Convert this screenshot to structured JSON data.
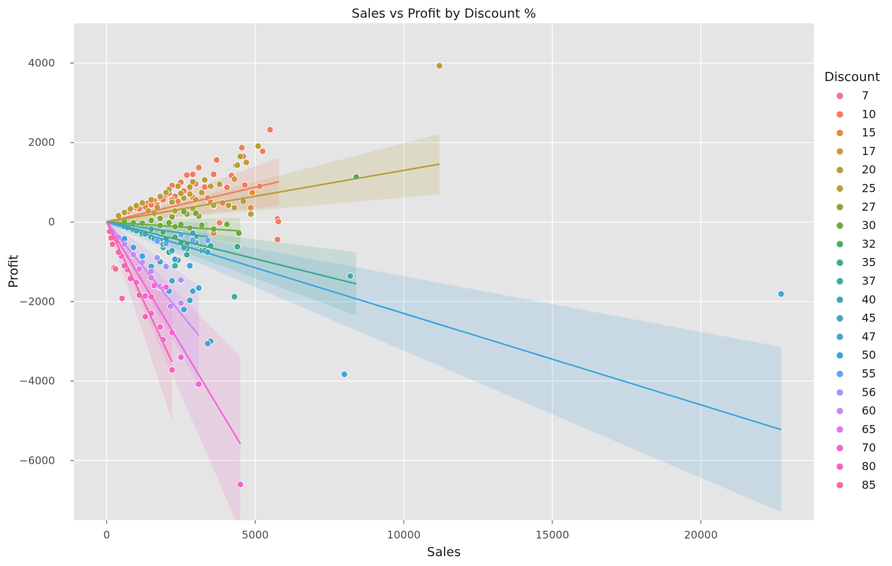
{
  "chart_data": {
    "type": "scatter",
    "title": "Sales vs Profit by Discount %",
    "xlabel": "Sales",
    "ylabel": "Profit",
    "xlim": [
      -1100,
      23800
    ],
    "ylim": [
      -7500,
      5000
    ],
    "xticks": [
      0,
      5000,
      10000,
      15000,
      20000
    ],
    "yticks": [
      -6000,
      -4000,
      -2000,
      0,
      2000,
      4000
    ],
    "xtick_labels": [
      "0",
      "5000",
      "10000",
      "15000",
      "20000"
    ],
    "ytick_labels": [
      "−6000",
      "−4000",
      "−2000",
      "0",
      "2000",
      "4000"
    ],
    "grid": true,
    "background": "#e5e5e5",
    "legend_title": "Discount",
    "legend_position": "right",
    "series": [
      {
        "name": "7",
        "color": "#f77189",
        "points": []
      },
      {
        "name": "10",
        "color": "#f57a5c",
        "slope": 0.175,
        "x_end": 5800,
        "points": [
          [
            5500,
            2320
          ],
          [
            5250,
            1780
          ],
          [
            4550,
            1870
          ],
          [
            4600,
            1650
          ],
          [
            3700,
            1560
          ],
          [
            3100,
            1370
          ],
          [
            2900,
            1200
          ],
          [
            2700,
            1180
          ],
          [
            3600,
            1200
          ],
          [
            4200,
            1170
          ],
          [
            4650,
            930
          ],
          [
            5150,
            900
          ],
          [
            5750,
            80
          ],
          [
            5780,
            10
          ],
          [
            5750,
            -440
          ],
          [
            3600,
            -280
          ],
          [
            3800,
            -20
          ],
          [
            3000,
            960
          ],
          [
            2500,
            1000
          ],
          [
            2200,
            920
          ],
          [
            2600,
            780
          ],
          [
            2300,
            650
          ],
          [
            2000,
            680
          ],
          [
            1800,
            600
          ],
          [
            1600,
            540
          ],
          [
            1400,
            480
          ],
          [
            1200,
            420
          ],
          [
            1000,
            350
          ],
          [
            800,
            290
          ],
          [
            600,
            220
          ],
          [
            400,
            150
          ],
          [
            3300,
            880
          ],
          [
            2800,
            850
          ],
          [
            2100,
            720
          ],
          [
            1900,
            560
          ],
          [
            1500,
            430
          ],
          [
            1100,
            330
          ],
          [
            700,
            260
          ],
          [
            3400,
            600
          ],
          [
            3900,
            480
          ],
          [
            4050,
            870
          ]
        ]
      },
      {
        "name": "15",
        "color": "#e58b3c",
        "points": [
          [
            4900,
            740
          ],
          [
            4850,
            360
          ],
          [
            3500,
            500
          ],
          [
            2900,
            620
          ],
          [
            2400,
            520
          ],
          [
            1700,
            430
          ],
          [
            1300,
            380
          ]
        ]
      },
      {
        "name": "17",
        "color": "#c99b3a",
        "points": [
          [
            4400,
            1450
          ],
          [
            4700,
            1500
          ],
          [
            4300,
            1080
          ],
          [
            3500,
            900
          ],
          [
            2800,
            700
          ],
          [
            2200,
            560
          ]
        ]
      },
      {
        "name": "20",
        "color": "#b79e38",
        "slope": 0.13,
        "x_end": 11200,
        "points": [
          [
            11200,
            3930
          ],
          [
            5100,
            1910
          ],
          [
            4500,
            1650
          ],
          [
            4350,
            1420
          ],
          [
            3800,
            950
          ],
          [
            3300,
            1060
          ],
          [
            2900,
            1010
          ],
          [
            2800,
            880
          ],
          [
            2400,
            900
          ],
          [
            2100,
            820
          ],
          [
            2000,
            740
          ],
          [
            1800,
            640
          ],
          [
            1500,
            560
          ],
          [
            1200,
            480
          ],
          [
            1000,
            410
          ],
          [
            800,
            330
          ],
          [
            600,
            240
          ],
          [
            400,
            160
          ],
          [
            4600,
            520
          ],
          [
            4850,
            200
          ],
          [
            4300,
            360
          ],
          [
            4100,
            420
          ],
          [
            3600,
            400
          ],
          [
            3000,
            560
          ],
          [
            2600,
            600
          ],
          [
            2200,
            500
          ],
          [
            1700,
            370
          ],
          [
            1400,
            280
          ],
          [
            3200,
            740
          ],
          [
            2500,
            720
          ]
        ]
      },
      {
        "name": "25",
        "color": "#b1a537",
        "points": [
          [
            4400,
            1430
          ],
          [
            3600,
            420
          ],
          [
            2900,
            340
          ],
          [
            2300,
            280
          ],
          [
            1600,
            220
          ]
        ]
      },
      {
        "name": "27",
        "color": "#8ba539",
        "points": [
          [
            3100,
            150
          ],
          [
            2700,
            200
          ],
          [
            2200,
            130
          ],
          [
            1800,
            90
          ]
        ]
      },
      {
        "name": "30",
        "color": "#70ab3c",
        "slope": -0.05,
        "x_end": 4500,
        "points": [
          [
            4450,
            -280
          ],
          [
            4050,
            -60
          ],
          [
            3600,
            -180
          ],
          [
            3200,
            -80
          ],
          [
            2800,
            -150
          ],
          [
            2500,
            -60
          ],
          [
            2100,
            -20
          ],
          [
            1800,
            -90
          ],
          [
            1500,
            40
          ],
          [
            1200,
            -30
          ],
          [
            900,
            -20
          ],
          [
            600,
            10
          ],
          [
            3000,
            220
          ],
          [
            2600,
            260
          ],
          [
            2300,
            -120
          ]
        ]
      },
      {
        "name": "32",
        "color": "#4fad5d",
        "points": [
          [
            2700,
            -560
          ],
          [
            2300,
            -380
          ],
          [
            1900,
            -250
          ],
          [
            1500,
            -180
          ]
        ]
      },
      {
        "name": "35",
        "color": "#3ea988",
        "slope": -0.185,
        "x_end": 8400,
        "points": [
          [
            8400,
            1130
          ],
          [
            4400,
            -620
          ],
          [
            3500,
            -600
          ],
          [
            3200,
            -720
          ],
          [
            2700,
            -820
          ],
          [
            2400,
            -960
          ],
          [
            2100,
            -760
          ],
          [
            1800,
            -500
          ],
          [
            1500,
            -380
          ],
          [
            1200,
            -300
          ],
          [
            900,
            -200
          ],
          [
            600,
            -120
          ],
          [
            3000,
            -360
          ],
          [
            2500,
            -520
          ],
          [
            2000,
            -420
          ]
        ]
      },
      {
        "name": "37",
        "color": "#42a9a2",
        "points": [
          [
            4300,
            -1880
          ],
          [
            3300,
            -720
          ],
          [
            2700,
            -680
          ],
          [
            2300,
            -1100
          ],
          [
            1900,
            -640
          ]
        ]
      },
      {
        "name": "40",
        "color": "#44a6b4",
        "slope": -0.11,
        "x_end": 3400,
        "points": [
          [
            8200,
            -1360
          ],
          [
            3400,
            -760
          ],
          [
            3000,
            -520
          ],
          [
            2600,
            -650
          ],
          [
            2200,
            -720
          ],
          [
            1900,
            -560
          ],
          [
            1600,
            -420
          ],
          [
            1300,
            -300
          ],
          [
            1000,
            -220
          ],
          [
            700,
            -140
          ],
          [
            2900,
            -280
          ]
        ]
      },
      {
        "name": "45",
        "color": "#45a5c2",
        "points": [
          [
            2800,
            -1970
          ],
          [
            2500,
            -1470
          ],
          [
            2200,
            -1480
          ],
          [
            1800,
            -1000
          ]
        ]
      },
      {
        "name": "47",
        "color": "#48a4d0",
        "points": [
          [
            3500,
            -3000
          ],
          [
            3400,
            -3060
          ],
          [
            2900,
            -1740
          ]
        ]
      },
      {
        "name": "50",
        "color": "#3ea3dd",
        "slope": -0.23,
        "x_end": 22700,
        "points": [
          [
            22700,
            -1810
          ],
          [
            8000,
            -3830
          ],
          [
            3100,
            -1660
          ],
          [
            2600,
            -2200
          ],
          [
            2100,
            -1740
          ],
          [
            1800,
            -1640
          ],
          [
            1500,
            -1120
          ],
          [
            1200,
            -860
          ],
          [
            900,
            -640
          ],
          [
            600,
            -420
          ],
          [
            2800,
            -1100
          ],
          [
            2300,
            -940
          ]
        ]
      },
      {
        "name": "55",
        "color": "#67a4f0",
        "points": [
          [
            3400,
            -460
          ],
          [
            2900,
            -460
          ],
          [
            2500,
            -320
          ],
          [
            2000,
            -540
          ],
          [
            1700,
            -480
          ]
        ]
      },
      {
        "name": "56",
        "color": "#9b9bf3",
        "points": [
          [
            2500,
            -1460
          ],
          [
            2000,
            -1120
          ],
          [
            1700,
            -900
          ]
        ]
      },
      {
        "name": "60",
        "color": "#c38af2",
        "slope": -0.92,
        "x_end": 3100,
        "points": [
          [
            3050,
            -4080
          ],
          [
            2150,
            -2120
          ],
          [
            1800,
            -1620
          ],
          [
            1500,
            -1240
          ],
          [
            1200,
            -1020
          ],
          [
            900,
            -820
          ],
          [
            600,
            -560
          ],
          [
            400,
            -380
          ],
          [
            2500,
            -2040
          ]
        ]
      },
      {
        "name": "65",
        "color": "#e276ed",
        "points": [
          [
            1900,
            -1670
          ],
          [
            1500,
            -1400
          ],
          [
            1100,
            -1180
          ]
        ]
      },
      {
        "name": "70",
        "color": "#f264d6",
        "slope": -1.24,
        "x_end": 4500,
        "points": [
          [
            4500,
            -6600
          ],
          [
            3100,
            -4080
          ],
          [
            2500,
            -3400
          ],
          [
            2200,
            -2780
          ],
          [
            1900,
            -2960
          ],
          [
            1800,
            -2640
          ],
          [
            1500,
            -2300
          ],
          [
            1300,
            -1860
          ],
          [
            1000,
            -1520
          ],
          [
            700,
            -1200
          ],
          [
            500,
            -860
          ],
          [
            300,
            -500
          ],
          [
            1600,
            -1600
          ],
          [
            2000,
            -1640
          ]
        ]
      },
      {
        "name": "80",
        "color": "#f565b0",
        "slope": -1.6,
        "x_end": 2200,
        "points": [
          [
            2200,
            -3720
          ],
          [
            1300,
            -2380
          ],
          [
            1100,
            -1840
          ],
          [
            800,
            -1420
          ],
          [
            600,
            -1100
          ],
          [
            520,
            -1920
          ],
          [
            250,
            -1150
          ],
          [
            400,
            -760
          ],
          [
            200,
            -420
          ],
          [
            1500,
            -1880
          ]
        ]
      },
      {
        "name": "85",
        "color": "#f56c97",
        "points": [
          [
            300,
            -1180
          ],
          [
            200,
            -560
          ],
          [
            150,
            -400
          ],
          [
            100,
            -240
          ]
        ]
      }
    ]
  }
}
